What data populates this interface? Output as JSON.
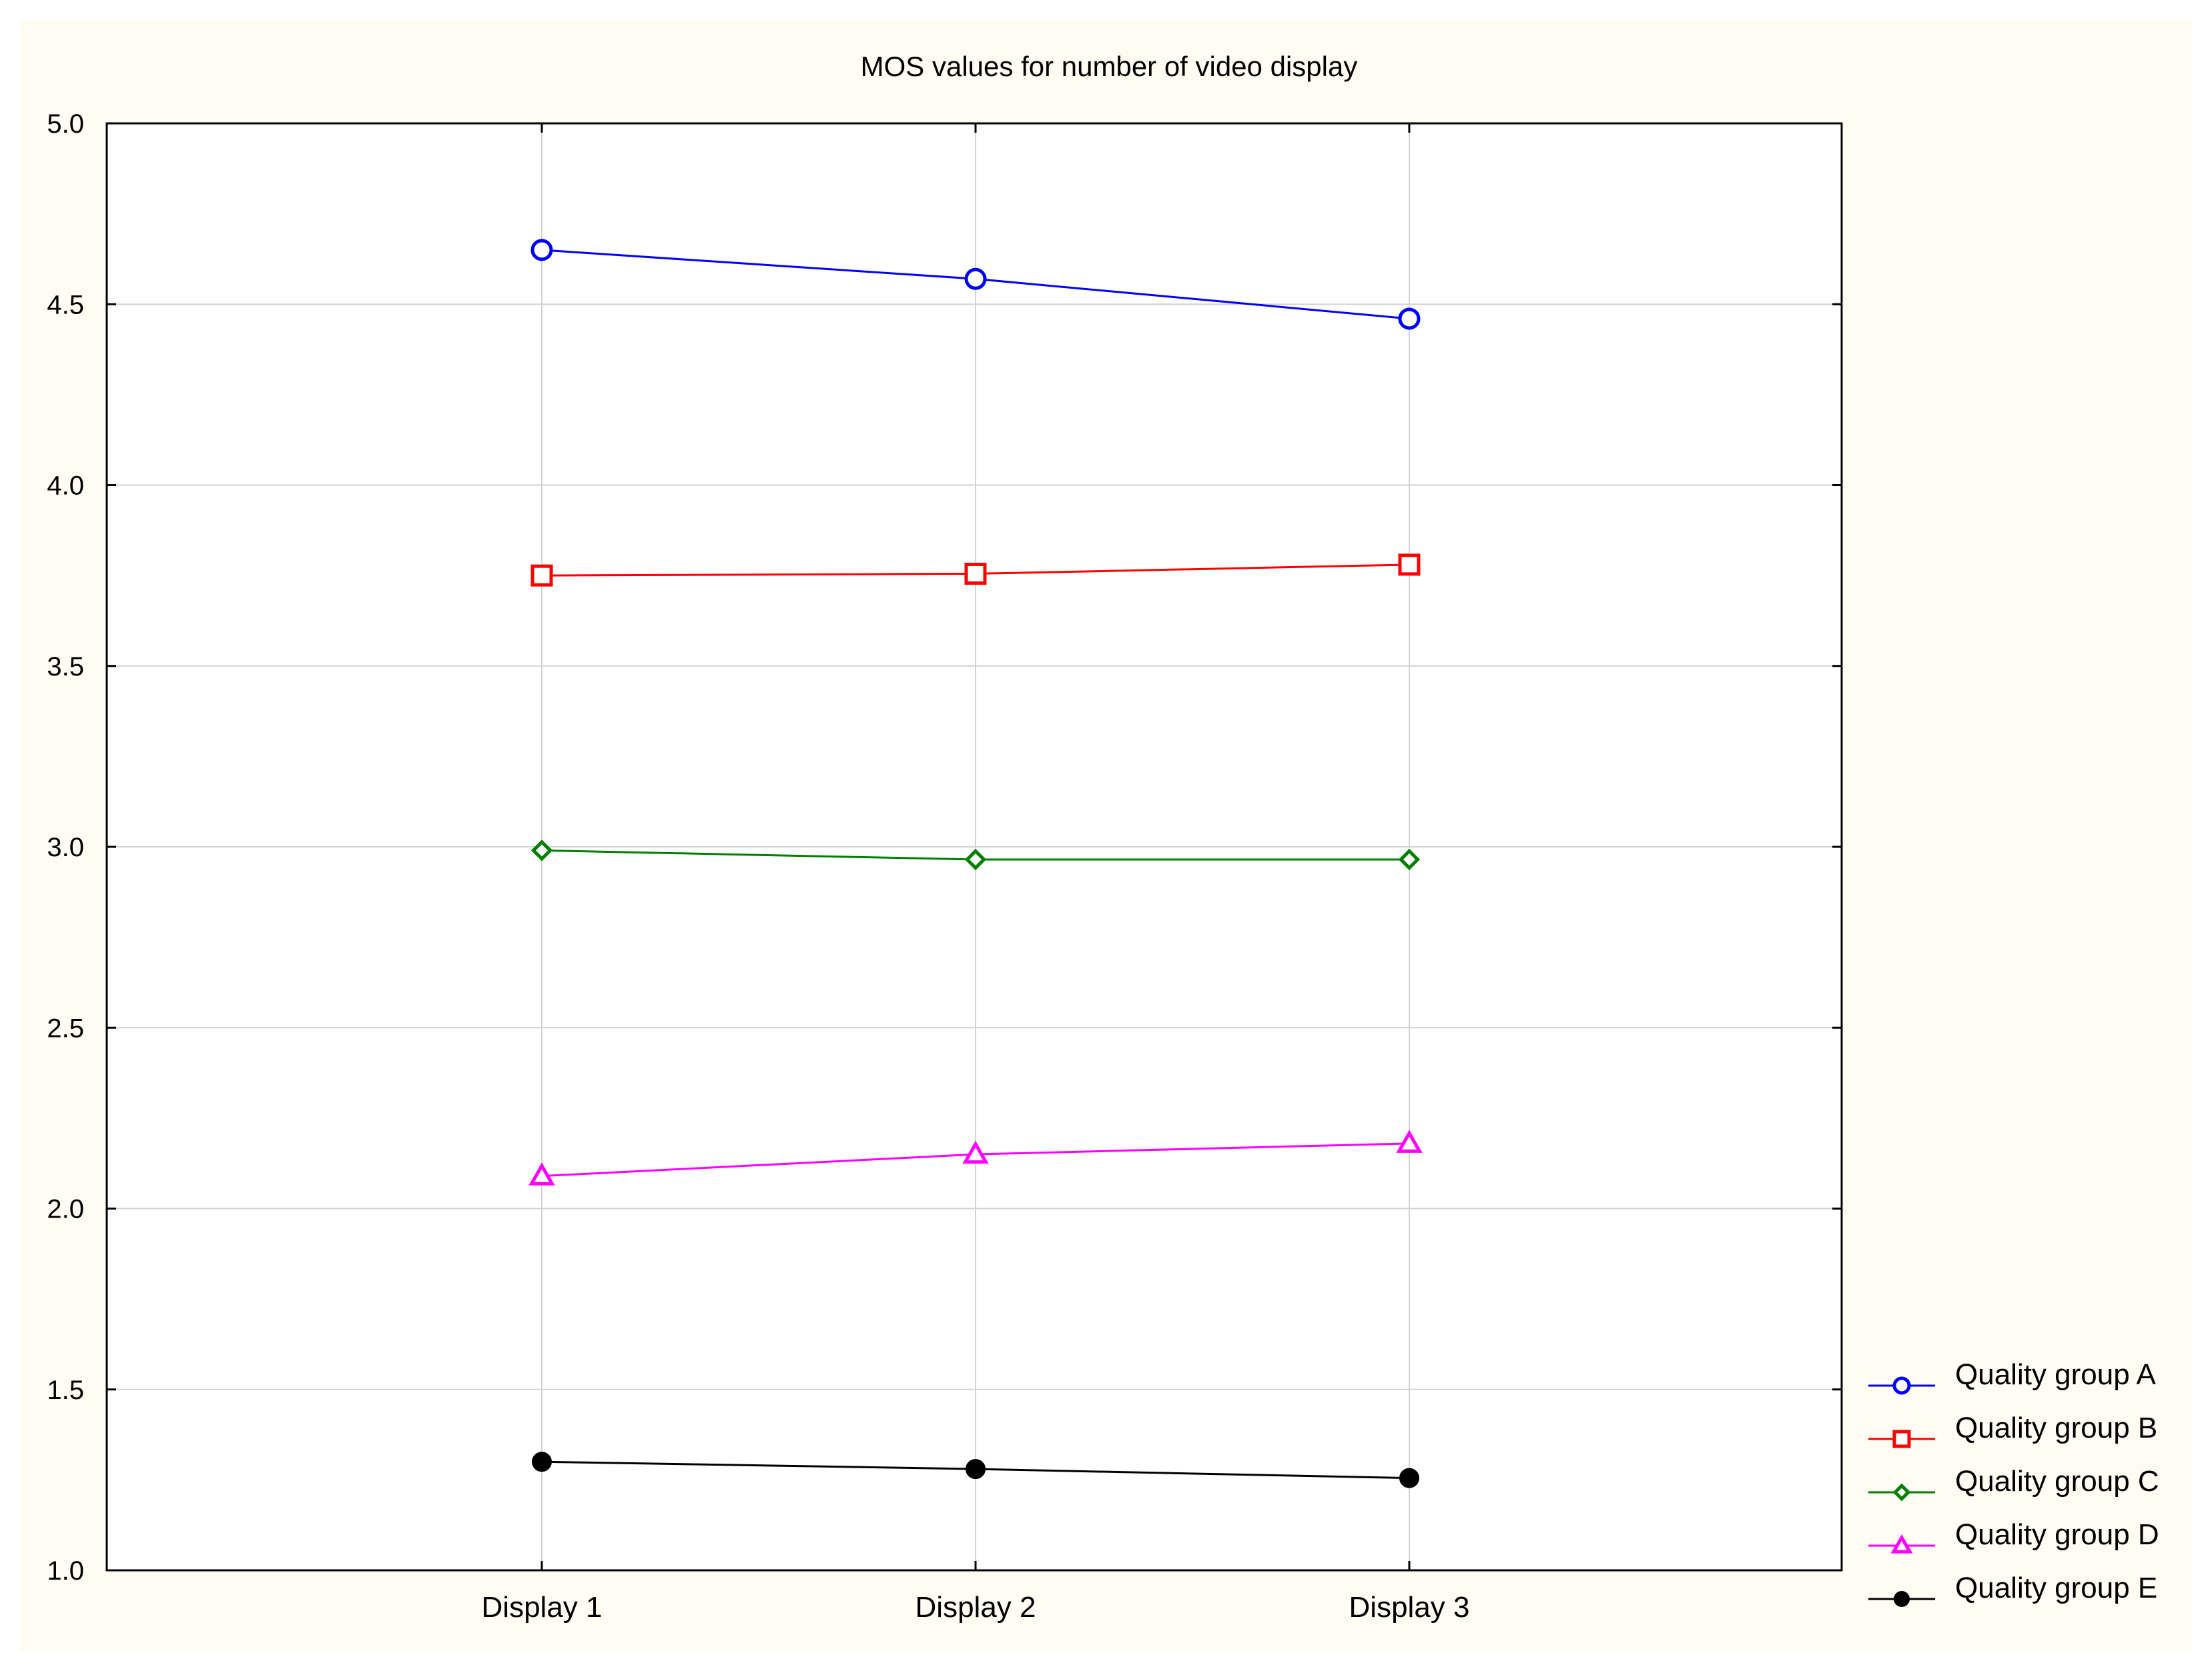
{
  "chart_data": {
    "type": "line",
    "title": "MOS values for number of video display",
    "xlabel": "",
    "ylabel": "",
    "categories": [
      "Display 1",
      "Display 2",
      "Display 3"
    ],
    "ylim": [
      1.0,
      5.0
    ],
    "yticks": [
      1.0,
      1.5,
      2.0,
      2.5,
      3.0,
      3.5,
      4.0,
      4.5,
      5.0
    ],
    "ytick_labels": [
      "1.0",
      "1.5",
      "2.0",
      "2.5",
      "3.0",
      "3.5",
      "4.0",
      "4.5",
      "5.0"
    ],
    "grid": true,
    "legend_position": "bottom-right, outside plot",
    "series": [
      {
        "name": "Quality group A",
        "values": [
          4.65,
          4.57,
          4.46
        ],
        "color": "#0000ff",
        "marker": "circle"
      },
      {
        "name": "Quality group B",
        "values": [
          3.75,
          3.755,
          3.78
        ],
        "color": "#ff0000",
        "marker": "square"
      },
      {
        "name": "Quality group C",
        "values": [
          2.99,
          2.965,
          2.965
        ],
        "color": "#008000",
        "marker": "diamond"
      },
      {
        "name": "Quality group D",
        "values": [
          2.09,
          2.15,
          2.18
        ],
        "color": "#ff00ff",
        "marker": "triangle"
      },
      {
        "name": "Quality group E",
        "values": [
          1.3,
          1.28,
          1.255
        ],
        "color": "#000000",
        "marker": "filled-circle"
      }
    ],
    "background_color": "#fffdf3",
    "plot_background_color": "#ffffff",
    "grid_color": "#d3d3d3"
  }
}
